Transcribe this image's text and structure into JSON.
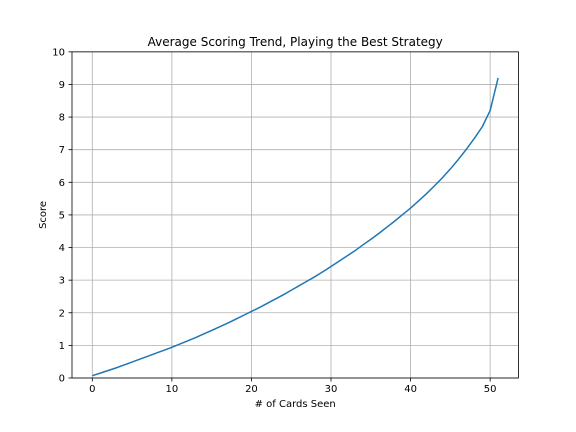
{
  "chart_data": {
    "type": "line",
    "title": "Average Scoring Trend, Playing the Best Strategy",
    "xlabel": "# of Cards Seen",
    "ylabel": "Score",
    "xlim": [
      -2.55,
      53.55
    ],
    "ylim": [
      0,
      10
    ],
    "xticks": [
      0,
      10,
      20,
      30,
      40,
      50
    ],
    "yticks": [
      0,
      1,
      2,
      3,
      4,
      5,
      6,
      7,
      8,
      9,
      10
    ],
    "xtick_labels": [
      "0",
      "10",
      "20",
      "30",
      "40",
      "50"
    ],
    "ytick_labels": [
      "0",
      "1",
      "2",
      "3",
      "4",
      "5",
      "6",
      "7",
      "8",
      "9",
      "10"
    ],
    "grid": true,
    "legend": "none",
    "series": [
      {
        "color": "#1f77b4",
        "x": [
          0,
          1,
          2,
          3,
          4,
          5,
          6,
          7,
          8,
          9,
          10,
          11,
          12,
          13,
          14,
          15,
          16,
          17,
          18,
          19,
          20,
          21,
          22,
          23,
          24,
          25,
          26,
          27,
          28,
          29,
          30,
          31,
          32,
          33,
          34,
          35,
          36,
          37,
          38,
          39,
          40,
          41,
          42,
          43,
          44,
          45,
          46,
          47,
          48,
          49,
          50,
          51
        ],
        "y": [
          0.07,
          0.15,
          0.23,
          0.31,
          0.4,
          0.49,
          0.58,
          0.67,
          0.76,
          0.85,
          0.94,
          1.04,
          1.14,
          1.24,
          1.35,
          1.46,
          1.57,
          1.68,
          1.8,
          1.92,
          2.04,
          2.16,
          2.29,
          2.42,
          2.55,
          2.69,
          2.83,
          2.97,
          3.11,
          3.26,
          3.42,
          3.58,
          3.74,
          3.9,
          4.08,
          4.25,
          4.43,
          4.62,
          4.81,
          5.01,
          5.21,
          5.43,
          5.65,
          5.89,
          6.14,
          6.41,
          6.7,
          7.01,
          7.34,
          7.7,
          8.2,
          9.2
        ]
      }
    ]
  }
}
